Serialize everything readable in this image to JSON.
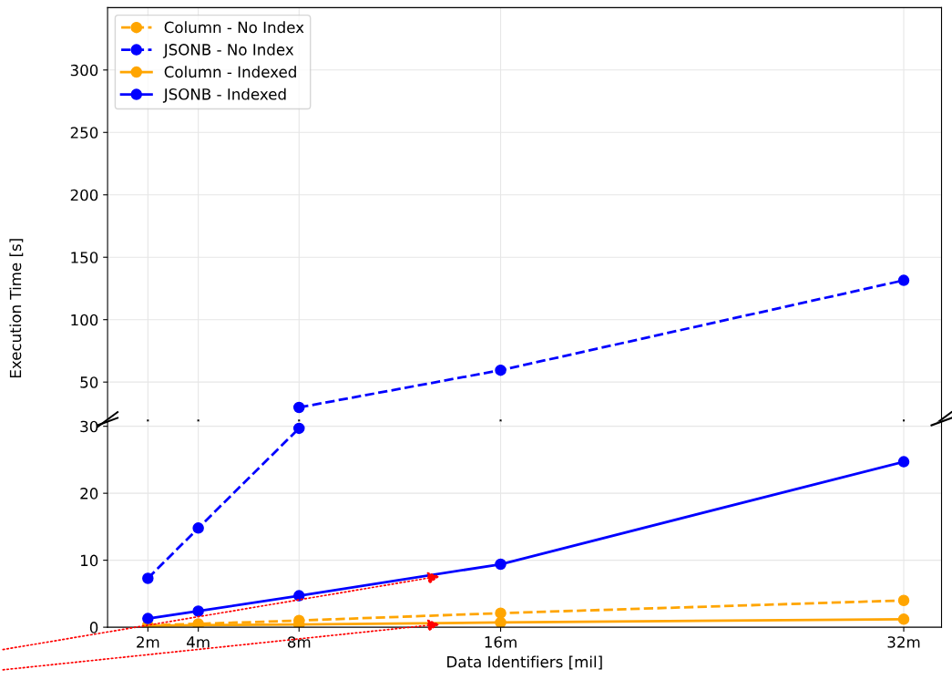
{
  "chart_data": [
    {
      "type": "line",
      "ylabel": "Execution Time [s]",
      "xlim": [
        0.4,
        33.5
      ],
      "xticks": [
        {
          "value": 2,
          "label": null
        },
        {
          "value": 4,
          "label": null
        },
        {
          "value": 8,
          "label": null
        },
        {
          "value": 16,
          "label": null
        },
        {
          "value": 32,
          "label": null
        }
      ],
      "ylim": [
        20,
        350
      ],
      "yticks": [
        50,
        100,
        150,
        200,
        250,
        300
      ],
      "tick_labels": "y",
      "grid": true,
      "legend": "top left",
      "marker": "circle",
      "series": [
        {
          "name": "Column - No Index",
          "color": "#ffa500",
          "line_style": "dashed"
        },
        {
          "name": "JSONB - No Index",
          "color": "#0000ff",
          "line_style": "dashed",
          "x": [
            8,
            16,
            32
          ],
          "values": [
            29.7,
            59.5,
            131.5
          ]
        },
        {
          "name": "Column - Indexed",
          "color": "#ffa500",
          "line_style": "solid"
        },
        {
          "name": "JSONB - Indexed",
          "color": "#0000ff",
          "line_style": "solid"
        }
      ]
    },
    {
      "type": "line",
      "xlabel": "Data Identifiers [mil]",
      "x": [
        2,
        4,
        8,
        16,
        32
      ],
      "xlim": [
        0.4,
        33.5
      ],
      "xticks": [
        {
          "value": 2,
          "label": "2m"
        },
        {
          "value": 4,
          "label": "4m"
        },
        {
          "value": 8,
          "label": "8m"
        },
        {
          "value": 16,
          "label": "16m"
        },
        {
          "value": 32,
          "label": "32m"
        }
      ],
      "ylim": [
        0,
        30.7
      ],
      "yticks": [
        0,
        10,
        20,
        30
      ],
      "grid": true,
      "marker": "circle",
      "series": [
        {
          "color": "#ffa500",
          "line_style": "dashed",
          "values": [
            0.3,
            0.5,
            1.0,
            2.1,
            4.0
          ]
        },
        {
          "color": "#0000ff",
          "line_style": "dashed",
          "values": [
            7.3,
            14.8,
            29.7,
            null,
            null
          ]
        },
        {
          "color": "#ffa500",
          "line_style": "solid",
          "values": [
            0.2,
            0.3,
            0.4,
            0.7,
            1.2
          ]
        },
        {
          "color": "#0000ff",
          "line_style": "solid",
          "values": [
            1.3,
            2.4,
            4.7,
            9.4,
            24.7
          ]
        }
      ]
    }
  ]
}
